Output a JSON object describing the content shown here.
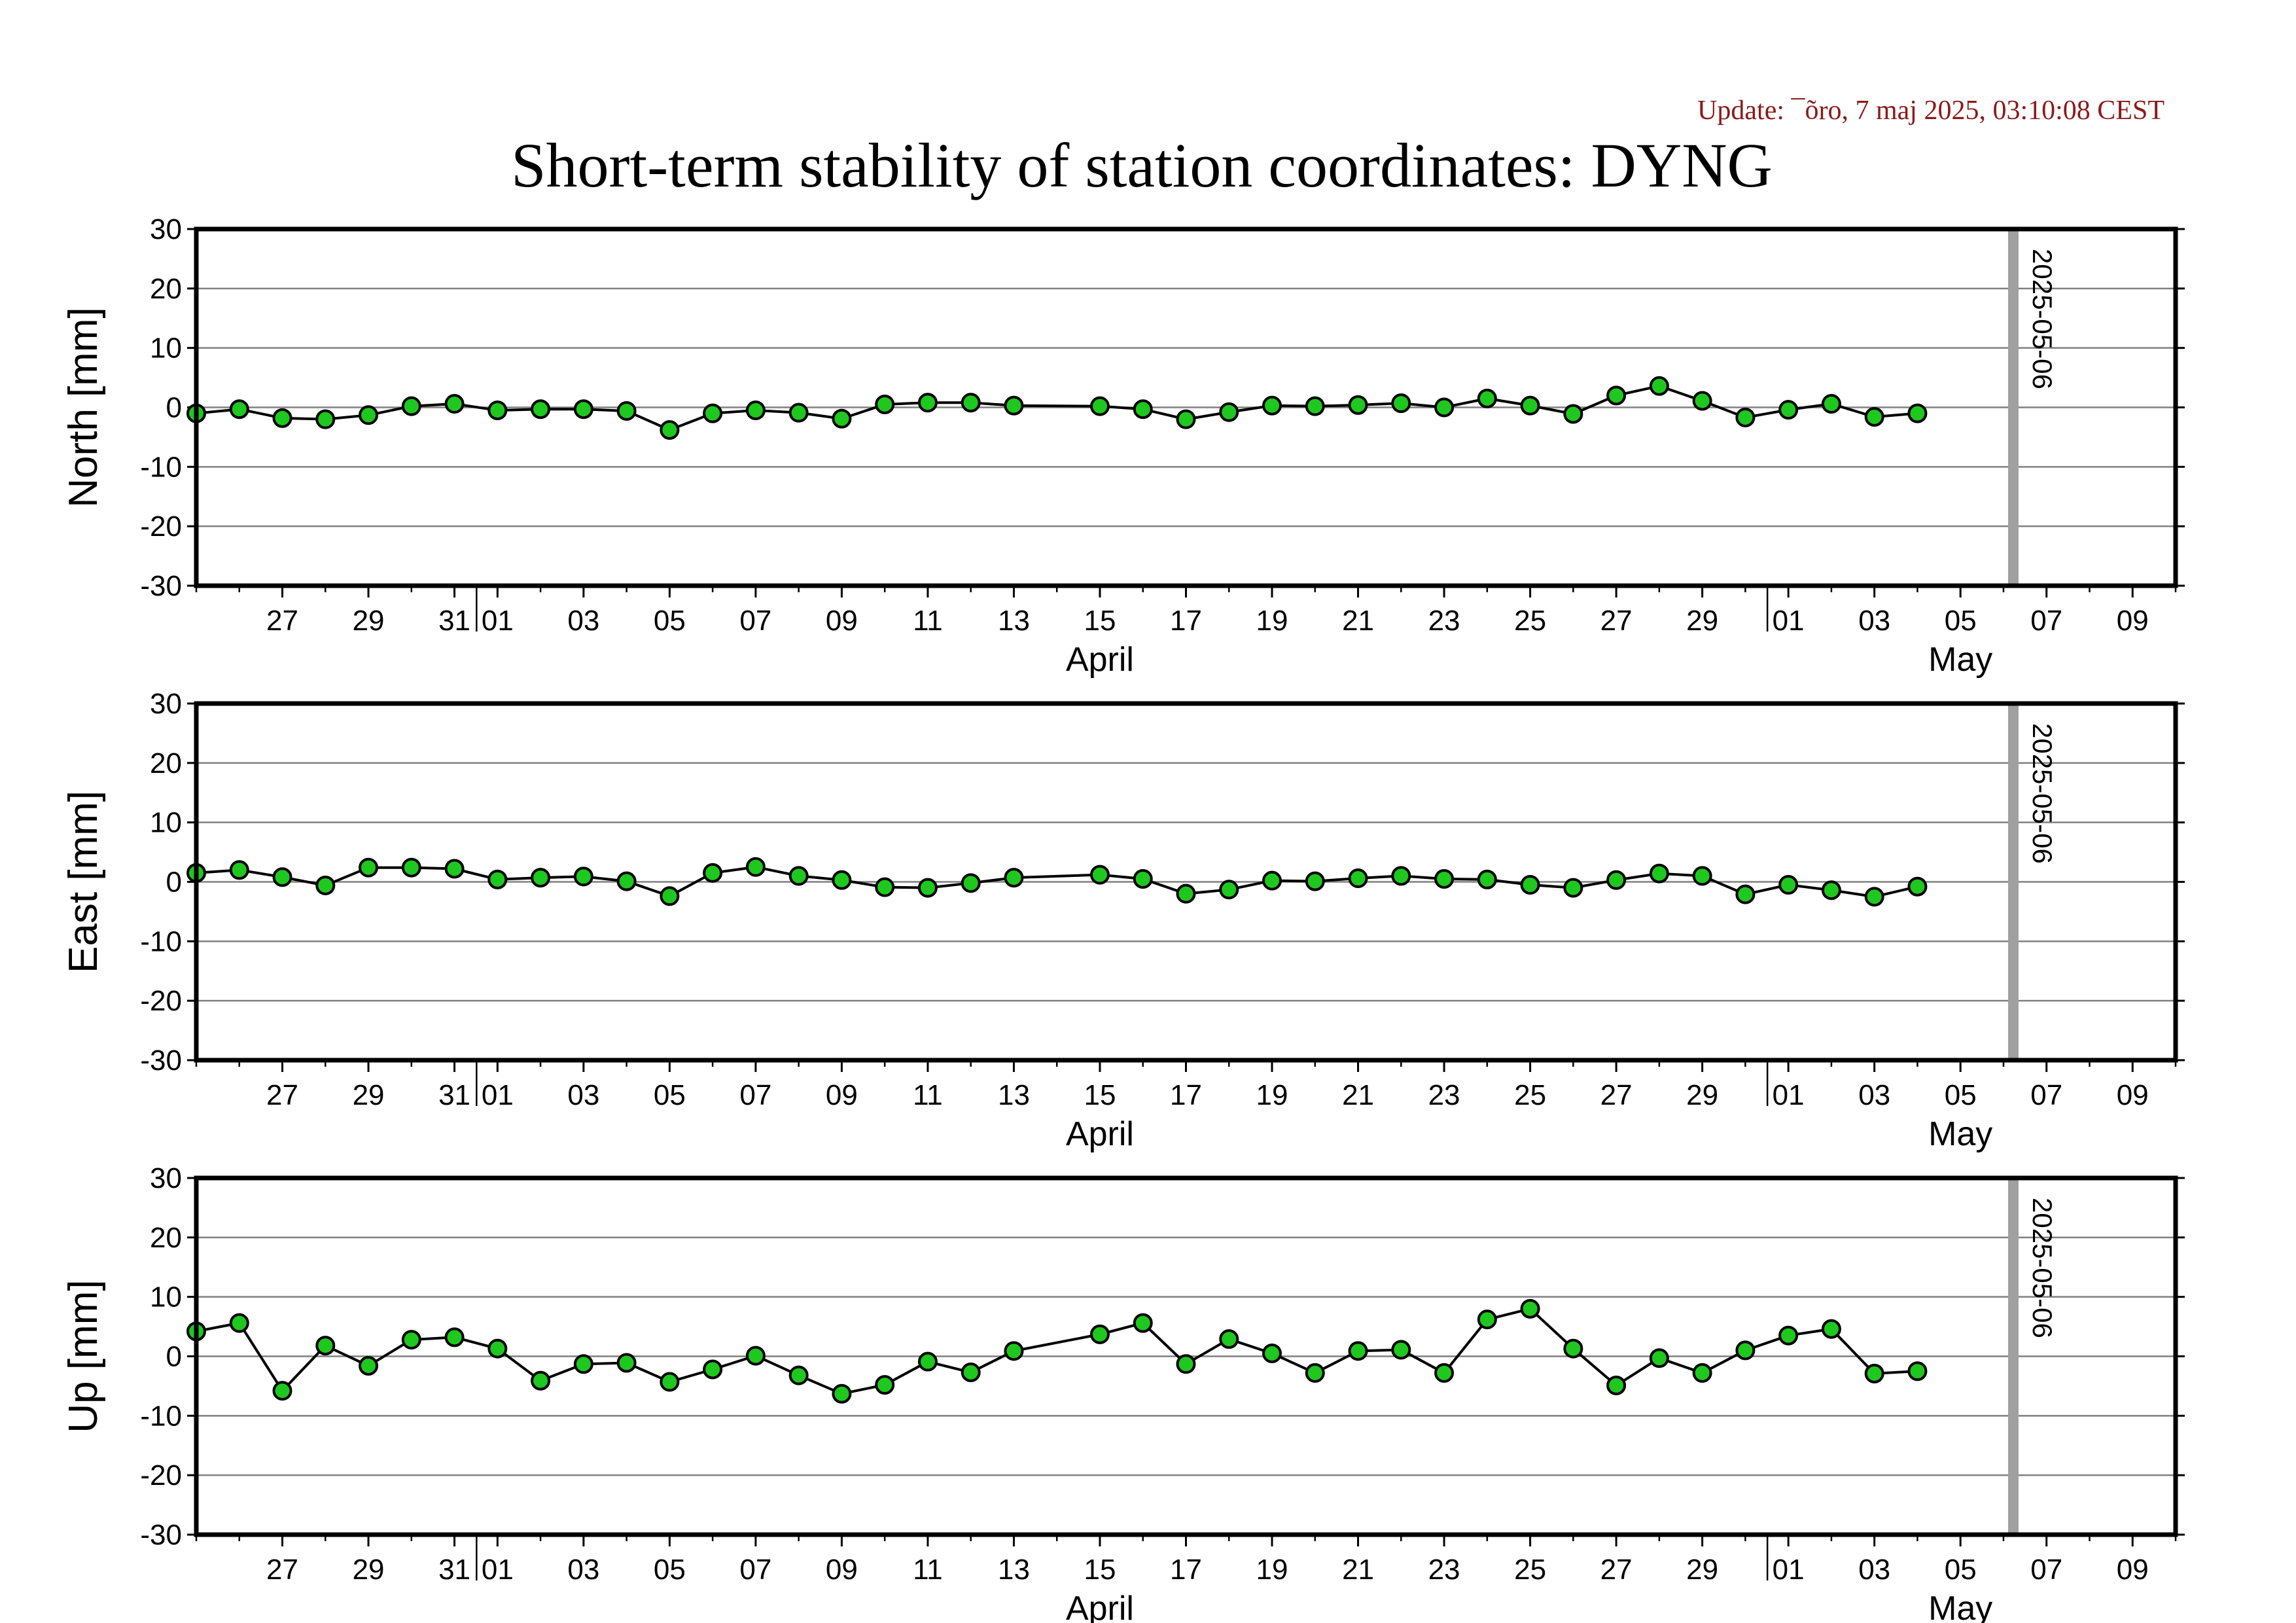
{
  "update_text": "Update: ¯õro, 7 maj 2025, 03:10:08 CEST",
  "title": "Short-term stability of station coordinates: DYNG",
  "colors": {
    "update_text": "#8b1a1a",
    "marker_fill": "#1ec81e",
    "marker_stroke": "#000000",
    "line": "#000000",
    "gridline": "#808080",
    "date_marker": "#a0a0a0"
  },
  "x_axis": {
    "tick_labels": [
      {
        "label": "27",
        "date": "2025-03-27"
      },
      {
        "label": "29",
        "date": "2025-03-29"
      },
      {
        "label": "31",
        "date": "2025-03-31"
      },
      {
        "label": "01",
        "date": "2025-04-01"
      },
      {
        "label": "03",
        "date": "2025-04-03"
      },
      {
        "label": "05",
        "date": "2025-04-05"
      },
      {
        "label": "07",
        "date": "2025-04-07"
      },
      {
        "label": "09",
        "date": "2025-04-09"
      },
      {
        "label": "11",
        "date": "2025-04-11"
      },
      {
        "label": "13",
        "date": "2025-04-13"
      },
      {
        "label": "15",
        "date": "2025-04-15"
      },
      {
        "label": "17",
        "date": "2025-04-17"
      },
      {
        "label": "19",
        "date": "2025-04-19"
      },
      {
        "label": "21",
        "date": "2025-04-21"
      },
      {
        "label": "23",
        "date": "2025-04-23"
      },
      {
        "label": "25",
        "date": "2025-04-25"
      },
      {
        "label": "27",
        "date": "2025-04-27"
      },
      {
        "label": "29",
        "date": "2025-04-29"
      },
      {
        "label": "01",
        "date": "2025-05-01"
      },
      {
        "label": "03",
        "date": "2025-05-03"
      },
      {
        "label": "05",
        "date": "2025-05-05"
      },
      {
        "label": "07",
        "date": "2025-05-07"
      },
      {
        "label": "09",
        "date": "2025-05-09"
      }
    ],
    "month_labels": [
      {
        "label": "April",
        "date": "2025-04-15"
      },
      {
        "label": "May",
        "date": "2025-05-05"
      }
    ],
    "month_boundaries": [
      "2025-04-01",
      "2025-05-01"
    ],
    "range": [
      "2025-03-25",
      "2025-05-10"
    ]
  },
  "date_marker": {
    "date": "2025-05-06",
    "label": "2025-05-06"
  },
  "chart_data": [
    {
      "type": "line",
      "ylabel": "North [mm]",
      "ylim": [
        -30,
        30
      ],
      "yticks": [
        "30",
        "20",
        "10",
        "0",
        "-10",
        "-20",
        "-30"
      ],
      "grid": true,
      "x": [
        "2025-03-25",
        "2025-03-26",
        "2025-03-27",
        "2025-03-28",
        "2025-03-29",
        "2025-03-30",
        "2025-03-31",
        "2025-04-01",
        "2025-04-02",
        "2025-04-03",
        "2025-04-04",
        "2025-04-05",
        "2025-04-06",
        "2025-04-07",
        "2025-04-08",
        "2025-04-09",
        "2025-04-10",
        "2025-04-11",
        "2025-04-12",
        "2025-04-13",
        "2025-04-15",
        "2025-04-16",
        "2025-04-17",
        "2025-04-18",
        "2025-04-19",
        "2025-04-20",
        "2025-04-21",
        "2025-04-22",
        "2025-04-23",
        "2025-04-24",
        "2025-04-25",
        "2025-04-26",
        "2025-04-27",
        "2025-04-28",
        "2025-04-29",
        "2025-04-30",
        "2025-05-01",
        "2025-05-02",
        "2025-05-03",
        "2025-05-04"
      ],
      "values": [
        -1.0,
        -0.3,
        -1.8,
        -2.0,
        -1.3,
        0.2,
        0.6,
        -0.5,
        -0.3,
        -0.3,
        -0.6,
        -3.8,
        -1.0,
        -0.5,
        -0.9,
        -1.9,
        0.5,
        0.8,
        0.8,
        0.3,
        0.2,
        -0.3,
        -2.0,
        -0.8,
        0.3,
        0.2,
        0.4,
        0.7,
        0.0,
        1.5,
        0.3,
        -1.1,
        2.0,
        3.6,
        1.1,
        -1.7,
        -0.4,
        0.6,
        -1.6,
        -1.0
      ]
    },
    {
      "type": "line",
      "ylabel": "East [mm]",
      "ylim": [
        -30,
        30
      ],
      "yticks": [
        "30",
        "20",
        "10",
        "0",
        "-10",
        "-20",
        "-30"
      ],
      "grid": true,
      "x": [
        "2025-03-25",
        "2025-03-26",
        "2025-03-27",
        "2025-03-28",
        "2025-03-29",
        "2025-03-30",
        "2025-03-31",
        "2025-04-01",
        "2025-04-02",
        "2025-04-03",
        "2025-04-04",
        "2025-04-05",
        "2025-04-06",
        "2025-04-07",
        "2025-04-08",
        "2025-04-09",
        "2025-04-10",
        "2025-04-11",
        "2025-04-12",
        "2025-04-13",
        "2025-04-15",
        "2025-04-16",
        "2025-04-17",
        "2025-04-18",
        "2025-04-19",
        "2025-04-20",
        "2025-04-21",
        "2025-04-22",
        "2025-04-23",
        "2025-04-24",
        "2025-04-25",
        "2025-04-26",
        "2025-04-27",
        "2025-04-28",
        "2025-04-29",
        "2025-04-30",
        "2025-05-01",
        "2025-05-02",
        "2025-05-03",
        "2025-05-04"
      ],
      "values": [
        1.5,
        2.0,
        0.8,
        -0.6,
        2.4,
        2.4,
        2.2,
        0.4,
        0.7,
        0.9,
        0.1,
        -2.4,
        1.5,
        2.5,
        1.0,
        0.3,
        -0.9,
        -1.0,
        -0.2,
        0.7,
        1.2,
        0.5,
        -2.0,
        -1.3,
        0.2,
        0.1,
        0.6,
        1.0,
        0.5,
        0.4,
        -0.5,
        -1.0,
        0.3,
        1.4,
        1.0,
        -2.1,
        -0.5,
        -1.4,
        -2.5,
        -0.8
      ]
    },
    {
      "type": "line",
      "ylabel": "Up [mm]",
      "ylim": [
        -30,
        30
      ],
      "yticks": [
        "30",
        "20",
        "10",
        "0",
        "-10",
        "-20",
        "-30"
      ],
      "grid": true,
      "x": [
        "2025-03-25",
        "2025-03-26",
        "2025-03-27",
        "2025-03-28",
        "2025-03-29",
        "2025-03-30",
        "2025-03-31",
        "2025-04-01",
        "2025-04-02",
        "2025-04-03",
        "2025-04-04",
        "2025-04-05",
        "2025-04-06",
        "2025-04-07",
        "2025-04-08",
        "2025-04-09",
        "2025-04-10",
        "2025-04-11",
        "2025-04-12",
        "2025-04-13",
        "2025-04-15",
        "2025-04-16",
        "2025-04-17",
        "2025-04-18",
        "2025-04-19",
        "2025-04-20",
        "2025-04-21",
        "2025-04-22",
        "2025-04-23",
        "2025-04-24",
        "2025-04-25",
        "2025-04-26",
        "2025-04-27",
        "2025-04-28",
        "2025-04-29",
        "2025-04-30",
        "2025-05-01",
        "2025-05-02",
        "2025-05-03",
        "2025-05-04"
      ],
      "values": [
        4.2,
        5.6,
        -5.8,
        1.8,
        -1.6,
        2.8,
        3.2,
        1.3,
        -4.1,
        -1.3,
        -1.1,
        -4.3,
        -2.2,
        0.1,
        -3.2,
        -6.3,
        -4.8,
        -0.9,
        -2.7,
        0.9,
        3.7,
        5.6,
        -1.3,
        2.9,
        0.5,
        -2.8,
        0.9,
        1.1,
        -2.8,
        6.2,
        8.0,
        1.3,
        -4.9,
        -0.3,
        -2.8,
        1.0,
        3.5,
        4.6,
        -2.9,
        -2.5
      ]
    }
  ]
}
